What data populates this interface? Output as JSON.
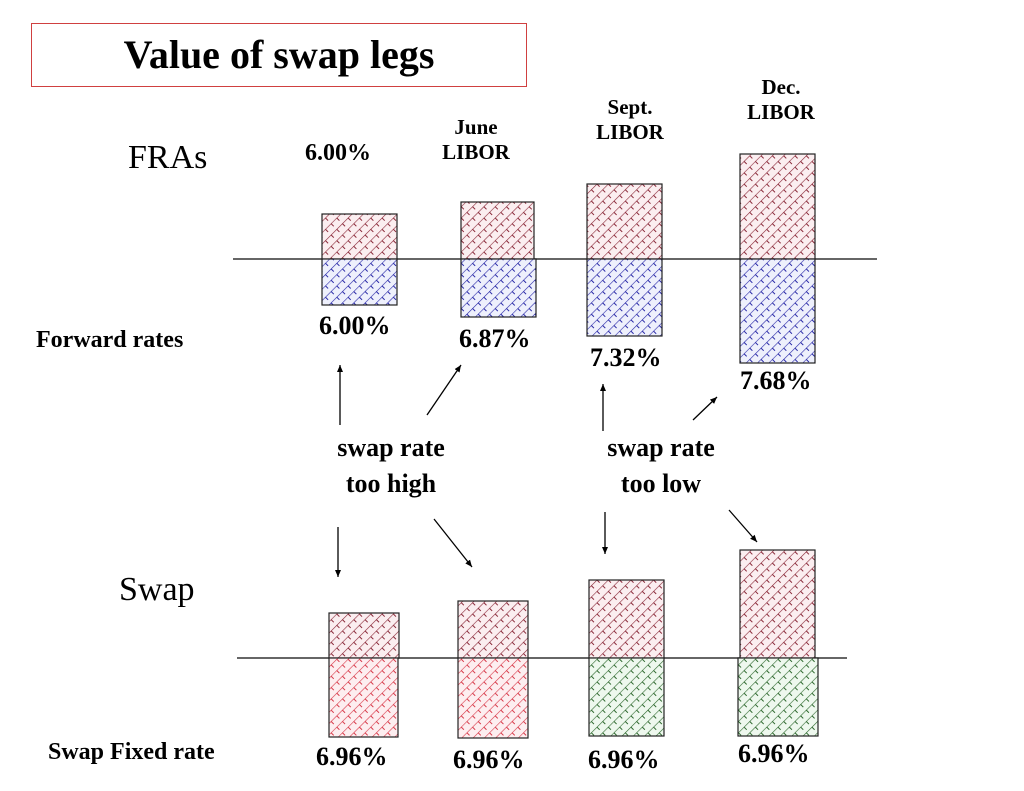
{
  "title": "Value of swap legs",
  "fras": {
    "label": "FRAs",
    "row_label": "Forward rates",
    "first_rate_label": "6.00%",
    "columns": [
      {
        "header": "",
        "rate": "6.00%"
      },
      {
        "header_lines": [
          "June",
          "LIBOR"
        ],
        "rate": "6.87%"
      },
      {
        "header_lines": [
          "Sept.",
          "LIBOR"
        ],
        "rate": "7.32%"
      },
      {
        "header_lines": [
          "Dec.",
          "LIBOR"
        ],
        "rate": "7.68%"
      }
    ]
  },
  "annotations": {
    "too_high": [
      "swap rate",
      "too high"
    ],
    "too_low": [
      "swap rate",
      "too low"
    ]
  },
  "swap": {
    "label": "Swap",
    "row_label": "Swap Fixed rate",
    "rates": [
      "6.96%",
      "6.96%",
      "6.96%",
      "6.96%"
    ]
  },
  "colors": {
    "title_border": "#d04040",
    "receive_hatch": "#8b2a3a",
    "fra_pay_hatch": "#2a2aa8",
    "swap_pay_high_hatch": "#d83a4a",
    "swap_pay_low_hatch": "#2f6a2f"
  }
}
